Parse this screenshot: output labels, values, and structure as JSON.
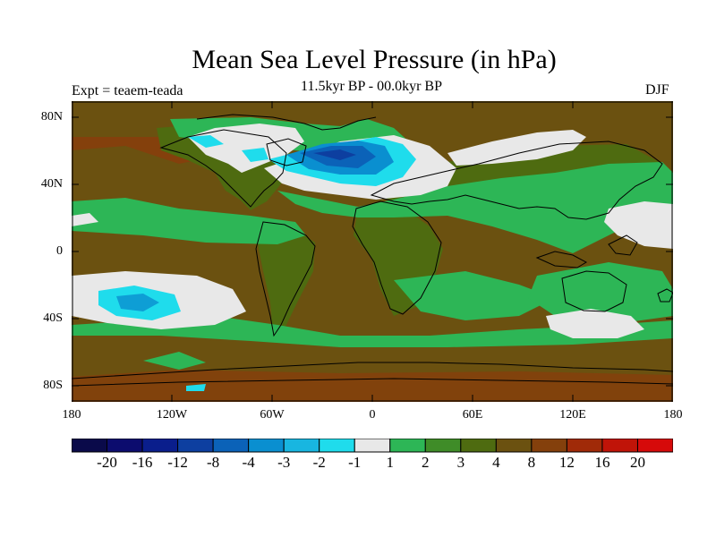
{
  "title": "Mean Sea Level Pressure (in hPa)",
  "subtitle": "11.5kyr BP - 00.0kyr BP",
  "experiment": "Expt = teaem-teada",
  "season": "DJF",
  "lat_labels": [
    "80N",
    "40N",
    "0",
    "40S",
    "80S"
  ],
  "lon_labels": [
    "180",
    "120W",
    "60W",
    "0",
    "60E",
    "120E",
    "180"
  ],
  "colorbar": {
    "labels": [
      "-20",
      "-16",
      "-12",
      "-8",
      "-4",
      "-3",
      "-2",
      "-1",
      "1",
      "2",
      "3",
      "4",
      "8",
      "12",
      "16",
      "20"
    ],
    "colors": [
      "#0a0a4a",
      "#0c0c6e",
      "#0a1e8c",
      "#0d3fa0",
      "#0b62b8",
      "#0a8fd0",
      "#18b6e0",
      "#1fdcec",
      "#e8e8e8",
      "#2db656",
      "#3f8c28",
      "#4e6b10",
      "#6b5110",
      "#84400c",
      "#a02a08",
      "#c01408",
      "#d60a0a"
    ]
  },
  "colors": {
    "ocean_base": "#6b5110",
    "land_base": "#4e6b10",
    "coast": "#000000"
  }
}
